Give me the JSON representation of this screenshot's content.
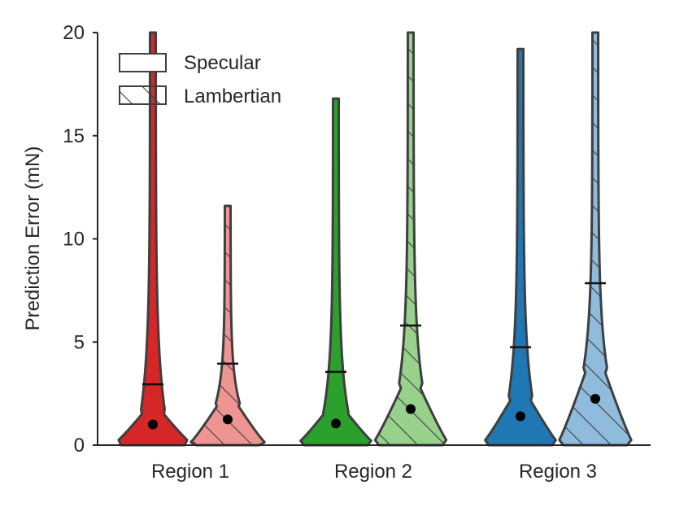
{
  "chart_data": {
    "type": "violin",
    "title": "",
    "xlabel": "",
    "ylabel": "Prediction Error (mN)",
    "ylim": [
      0,
      20
    ],
    "yticks": [
      0,
      5,
      10,
      15,
      20
    ],
    "categories": [
      "Region 1",
      "Region 2",
      "Region 3"
    ],
    "legend": {
      "placement": "top-left",
      "entries": [
        {
          "label": "Specular",
          "pattern": "solid"
        },
        {
          "label": "Lambertian",
          "pattern": "hatched"
        }
      ]
    },
    "series": [
      {
        "name": "Specular",
        "colors": [
          "#d62728",
          "#2ca02c",
          "#1f77b4"
        ],
        "median": [
          1.0,
          1.05,
          1.4
        ],
        "upper_marker": [
          2.95,
          3.55,
          4.75
        ],
        "max": [
          20,
          16.8,
          19.2
        ]
      },
      {
        "name": "Lambertian",
        "colors": [
          "#ee9594",
          "#97d18c",
          "#8fbbdd"
        ],
        "median": [
          1.25,
          1.75,
          2.25
        ],
        "upper_marker": [
          3.95,
          5.8,
          7.85
        ],
        "max": [
          11.6,
          20,
          20
        ]
      }
    ],
    "grid": false
  }
}
